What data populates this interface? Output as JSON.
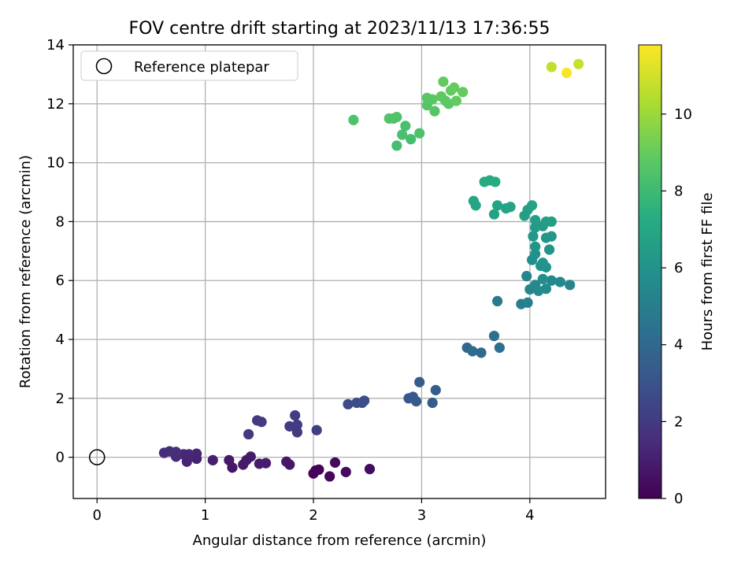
{
  "chart_data": {
    "type": "scatter",
    "title": "FOV centre drift starting at 2023/11/13 17:36:55",
    "xlabel": "Angular distance from reference (arcmin)",
    "ylabel": "Rotation from reference (arcmin)",
    "xlim": [
      -0.22,
      4.7
    ],
    "ylim": [
      -1.4,
      14
    ],
    "xticks": [
      0,
      1,
      2,
      3,
      4
    ],
    "yticks": [
      0,
      2,
      4,
      6,
      8,
      10,
      12,
      14
    ],
    "grid": true,
    "legend": {
      "placement": "top-left",
      "entries": [
        "Reference platepar"
      ]
    },
    "reference_point": {
      "x": 0,
      "y": 0
    },
    "colorbar": {
      "label": "Hours from first FF file",
      "colormap": "viridis",
      "range": [
        0,
        11.8
      ],
      "ticks": [
        0,
        2,
        4,
        6,
        8,
        10
      ]
    },
    "points": [
      {
        "x": 2.0,
        "y": -0.55,
        "c": 0.1
      },
      {
        "x": 2.05,
        "y": -0.42,
        "c": 0.1
      },
      {
        "x": 2.15,
        "y": -0.65,
        "c": 0.2
      },
      {
        "x": 2.02,
        "y": -0.45,
        "c": 0.15
      },
      {
        "x": 2.2,
        "y": -0.18,
        "c": 0.3
      },
      {
        "x": 2.3,
        "y": -0.5,
        "c": 0.3
      },
      {
        "x": 2.52,
        "y": -0.4,
        "c": 0.4
      },
      {
        "x": 1.25,
        "y": -0.35,
        "c": 0.7
      },
      {
        "x": 1.22,
        "y": -0.1,
        "c": 0.8
      },
      {
        "x": 1.35,
        "y": -0.25,
        "c": 0.8
      },
      {
        "x": 1.42,
        "y": 0.02,
        "c": 0.9
      },
      {
        "x": 1.38,
        "y": -0.1,
        "c": 0.85
      },
      {
        "x": 1.5,
        "y": -0.22,
        "c": 0.9
      },
      {
        "x": 1.56,
        "y": -0.2,
        "c": 0.9
      },
      {
        "x": 1.75,
        "y": -0.15,
        "c": 0.8
      },
      {
        "x": 1.78,
        "y": -0.25,
        "c": 0.75
      },
      {
        "x": 1.07,
        "y": -0.1,
        "c": 1.0
      },
      {
        "x": 0.92,
        "y": -0.05,
        "c": 1.1
      },
      {
        "x": 0.92,
        "y": 0.12,
        "c": 1.2
      },
      {
        "x": 0.83,
        "y": -0.15,
        "c": 1.2
      },
      {
        "x": 0.8,
        "y": 0.1,
        "c": 1.3
      },
      {
        "x": 0.85,
        "y": 0.1,
        "c": 1.3
      },
      {
        "x": 0.73,
        "y": 0.02,
        "c": 1.4
      },
      {
        "x": 0.62,
        "y": 0.15,
        "c": 1.5
      },
      {
        "x": 0.67,
        "y": 0.2,
        "c": 1.5
      },
      {
        "x": 0.73,
        "y": 0.18,
        "c": 1.6
      },
      {
        "x": 1.4,
        "y": 0.78,
        "c": 1.9
      },
      {
        "x": 1.48,
        "y": 1.25,
        "c": 2.0
      },
      {
        "x": 1.52,
        "y": 1.2,
        "c": 2.0
      },
      {
        "x": 1.78,
        "y": 1.05,
        "c": 2.1
      },
      {
        "x": 1.83,
        "y": 1.42,
        "c": 2.1
      },
      {
        "x": 1.85,
        "y": 1.1,
        "c": 2.1
      },
      {
        "x": 1.85,
        "y": 0.85,
        "c": 2.0
      },
      {
        "x": 2.03,
        "y": 0.92,
        "c": 2.2
      },
      {
        "x": 2.32,
        "y": 1.8,
        "c": 2.6
      },
      {
        "x": 2.4,
        "y": 1.85,
        "c": 2.7
      },
      {
        "x": 2.45,
        "y": 1.85,
        "c": 2.7
      },
      {
        "x": 2.47,
        "y": 1.92,
        "c": 2.8
      },
      {
        "x": 2.88,
        "y": 2.0,
        "c": 3.2
      },
      {
        "x": 2.92,
        "y": 2.05,
        "c": 3.2
      },
      {
        "x": 2.95,
        "y": 1.9,
        "c": 3.3
      },
      {
        "x": 2.98,
        "y": 2.55,
        "c": 3.4
      },
      {
        "x": 3.1,
        "y": 1.85,
        "c": 3.4
      },
      {
        "x": 3.13,
        "y": 2.28,
        "c": 3.5
      },
      {
        "x": 3.42,
        "y": 3.72,
        "c": 4.0
      },
      {
        "x": 3.47,
        "y": 3.6,
        "c": 4.1
      },
      {
        "x": 3.55,
        "y": 3.55,
        "c": 4.1
      },
      {
        "x": 3.67,
        "y": 4.12,
        "c": 4.3
      },
      {
        "x": 3.72,
        "y": 3.72,
        "c": 4.3
      },
      {
        "x": 3.7,
        "y": 5.3,
        "c": 4.8
      },
      {
        "x": 3.92,
        "y": 5.2,
        "c": 5.0
      },
      {
        "x": 3.98,
        "y": 5.25,
        "c": 5.1
      },
      {
        "x": 3.97,
        "y": 6.15,
        "c": 5.3
      },
      {
        "x": 4.0,
        "y": 5.7,
        "c": 5.4
      },
      {
        "x": 4.05,
        "y": 5.85,
        "c": 5.5
      },
      {
        "x": 4.08,
        "y": 5.65,
        "c": 5.6
      },
      {
        "x": 4.15,
        "y": 5.72,
        "c": 5.6
      },
      {
        "x": 4.2,
        "y": 6.0,
        "c": 5.5
      },
      {
        "x": 4.28,
        "y": 5.95,
        "c": 5.5
      },
      {
        "x": 4.37,
        "y": 5.85,
        "c": 5.4
      },
      {
        "x": 4.12,
        "y": 6.05,
        "c": 5.8
      },
      {
        "x": 4.02,
        "y": 6.7,
        "c": 5.8
      },
      {
        "x": 4.05,
        "y": 6.9,
        "c": 5.9
      },
      {
        "x": 4.1,
        "y": 6.5,
        "c": 5.9
      },
      {
        "x": 4.12,
        "y": 6.6,
        "c": 6.0
      },
      {
        "x": 4.15,
        "y": 6.45,
        "c": 6.0
      },
      {
        "x": 4.05,
        "y": 7.15,
        "c": 6.1
      },
      {
        "x": 4.18,
        "y": 7.05,
        "c": 6.1
      },
      {
        "x": 4.15,
        "y": 7.45,
        "c": 6.2
      },
      {
        "x": 4.2,
        "y": 7.5,
        "c": 6.2
      },
      {
        "x": 4.03,
        "y": 7.5,
        "c": 6.3
      },
      {
        "x": 4.05,
        "y": 7.8,
        "c": 6.4
      },
      {
        "x": 4.12,
        "y": 7.85,
        "c": 6.4
      },
      {
        "x": 4.15,
        "y": 8.0,
        "c": 6.5
      },
      {
        "x": 4.2,
        "y": 8.0,
        "c": 6.5
      },
      {
        "x": 4.05,
        "y": 8.05,
        "c": 6.5
      },
      {
        "x": 3.95,
        "y": 8.2,
        "c": 6.6
      },
      {
        "x": 3.98,
        "y": 8.4,
        "c": 6.6
      },
      {
        "x": 4.02,
        "y": 8.55,
        "c": 6.7
      },
      {
        "x": 3.78,
        "y": 8.45,
        "c": 6.8
      },
      {
        "x": 3.82,
        "y": 8.5,
        "c": 6.8
      },
      {
        "x": 3.67,
        "y": 8.25,
        "c": 6.7
      },
      {
        "x": 3.7,
        "y": 8.55,
        "c": 6.8
      },
      {
        "x": 3.5,
        "y": 8.55,
        "c": 6.9
      },
      {
        "x": 3.48,
        "y": 8.7,
        "c": 6.9
      },
      {
        "x": 3.58,
        "y": 9.35,
        "c": 7.1
      },
      {
        "x": 3.63,
        "y": 9.4,
        "c": 7.1
      },
      {
        "x": 3.68,
        "y": 9.35,
        "c": 7.2
      },
      {
        "x": 2.37,
        "y": 11.45,
        "c": 8.4
      },
      {
        "x": 2.7,
        "y": 11.5,
        "c": 8.5
      },
      {
        "x": 2.74,
        "y": 11.5,
        "c": 8.5
      },
      {
        "x": 2.77,
        "y": 11.55,
        "c": 8.5
      },
      {
        "x": 2.82,
        "y": 10.95,
        "c": 8.3
      },
      {
        "x": 2.85,
        "y": 11.25,
        "c": 8.3
      },
      {
        "x": 2.77,
        "y": 10.58,
        "c": 8.2
      },
      {
        "x": 2.9,
        "y": 10.8,
        "c": 8.2
      },
      {
        "x": 2.98,
        "y": 11.0,
        "c": 8.4
      },
      {
        "x": 3.05,
        "y": 11.95,
        "c": 8.6
      },
      {
        "x": 3.05,
        "y": 12.2,
        "c": 8.7
      },
      {
        "x": 3.1,
        "y": 12.15,
        "c": 8.7
      },
      {
        "x": 3.12,
        "y": 11.75,
        "c": 8.6
      },
      {
        "x": 3.18,
        "y": 12.25,
        "c": 8.8
      },
      {
        "x": 3.2,
        "y": 12.75,
        "c": 8.9
      },
      {
        "x": 3.22,
        "y": 12.1,
        "c": 8.8
      },
      {
        "x": 3.25,
        "y": 12.0,
        "c": 8.8
      },
      {
        "x": 3.27,
        "y": 12.45,
        "c": 8.9
      },
      {
        "x": 3.3,
        "y": 12.55,
        "c": 9.0
      },
      {
        "x": 3.32,
        "y": 12.1,
        "c": 8.9
      },
      {
        "x": 3.38,
        "y": 12.4,
        "c": 9.0
      },
      {
        "x": 4.2,
        "y": 13.25,
        "c": 10.7
      },
      {
        "x": 4.34,
        "y": 13.05,
        "c": 11.7
      },
      {
        "x": 4.45,
        "y": 13.35,
        "c": 10.8
      }
    ]
  }
}
